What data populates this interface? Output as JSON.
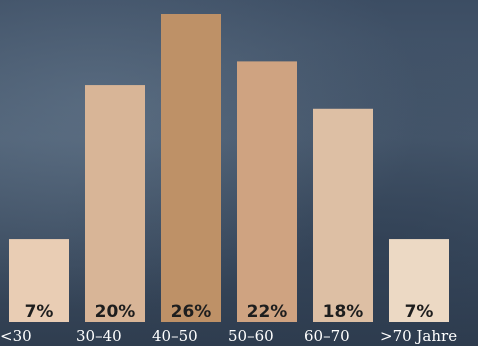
{
  "chart_data": {
    "type": "bar",
    "categories": [
      "<30",
      "30–40",
      "40–50",
      "50–60",
      "60–70",
      ">70 Jahre"
    ],
    "values": [
      7,
      20,
      26,
      22,
      18,
      7
    ],
    "value_labels": [
      "7%",
      "20%",
      "26%",
      "22%",
      "18%",
      "7%"
    ],
    "bar_colors": [
      "#e9cdb4",
      "#d8b597",
      "#be9167",
      "#cfa381",
      "#ddbfa4",
      "#ecd9c4"
    ],
    "ylim": [
      0,
      26
    ],
    "grid": false,
    "legend": "none"
  }
}
